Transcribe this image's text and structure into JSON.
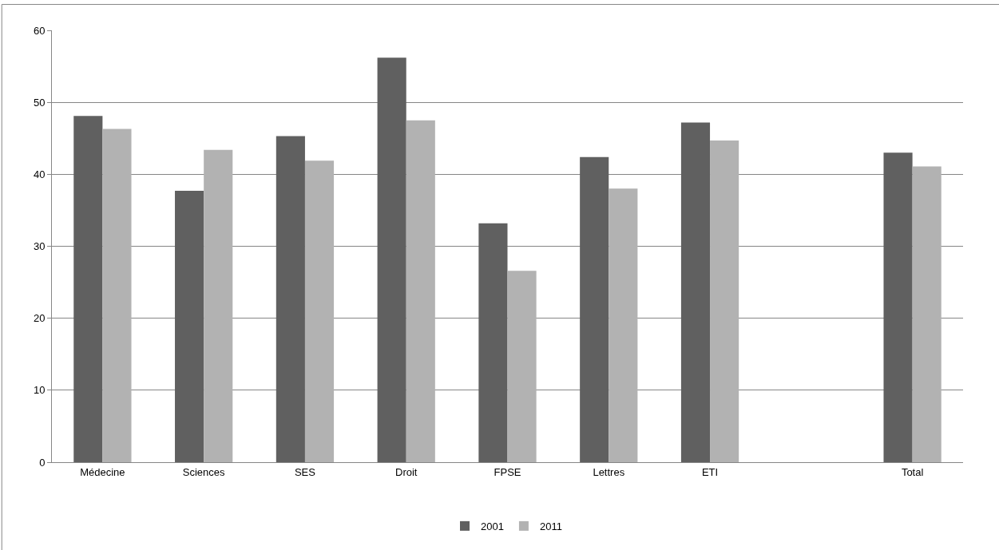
{
  "chart_data": {
    "type": "bar",
    "categories": [
      "Médecine",
      "Sciences",
      "SES",
      "Droit",
      "FPSE",
      "Lettres",
      "ETI",
      null,
      "Total"
    ],
    "series": [
      {
        "name": "2001",
        "color": "#606060",
        "values": [
          48.1,
          37.7,
          45.3,
          56.2,
          33.2,
          42.4,
          47.2,
          null,
          43.0
        ]
      },
      {
        "name": "2011",
        "color": "#b2b2b2",
        "values": [
          46.3,
          43.4,
          41.9,
          47.5,
          26.6,
          38.0,
          44.7,
          null,
          41.1
        ]
      }
    ],
    "ylim": [
      0,
      60
    ],
    "yticks": [
      0,
      10,
      20,
      30,
      40,
      50,
      60
    ],
    "grid": "y",
    "legend": "bottom"
  }
}
